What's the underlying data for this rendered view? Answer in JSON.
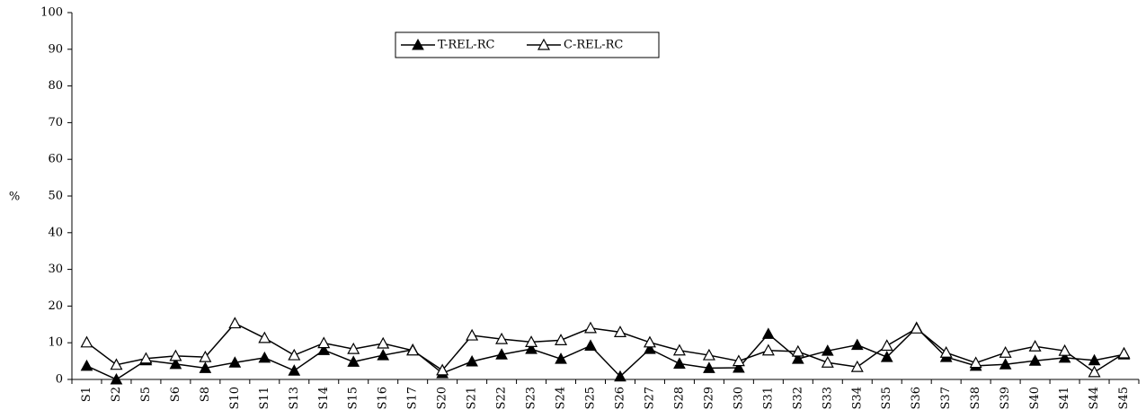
{
  "chart_data": {
    "type": "line",
    "title": "",
    "xlabel": "",
    "ylabel": "%",
    "ylim": [
      0,
      100
    ],
    "yticks": [
      0,
      10,
      20,
      30,
      40,
      50,
      60,
      70,
      80,
      90,
      100
    ],
    "grid": false,
    "legend_position": "top-center",
    "categories": [
      "S1",
      "S2",
      "S5",
      "S6",
      "S8",
      "S10",
      "S11",
      "S13",
      "S14",
      "S15",
      "S16",
      "S17",
      "S20",
      "S21",
      "S22",
      "S23",
      "S24",
      "S25",
      "S26",
      "S27",
      "S28",
      "S29",
      "S30",
      "S31",
      "S32",
      "S33",
      "S34",
      "S35",
      "S36",
      "S37",
      "S38",
      "S39",
      "S40",
      "S41",
      "S44",
      "S45"
    ],
    "series": [
      {
        "name": "T-REL-RC",
        "marker": "filled-triangle",
        "color": "#000000",
        "values": [
          3.7,
          0,
          5.2,
          4.2,
          3.1,
          4.6,
          5.9,
          2.4,
          8.0,
          4.8,
          6.6,
          8.1,
          1.7,
          4.9,
          6.8,
          8.3,
          5.6,
          9.2,
          0.8,
          8.3,
          4.3,
          3.1,
          3.2,
          12.4,
          5.6,
          7.8,
          9.4,
          6.1,
          14.1,
          6.1,
          3.7,
          4.1,
          5.1,
          5.9,
          5.2,
          6.8
        ]
      },
      {
        "name": "C-REL-RC",
        "marker": "open-triangle",
        "color": "#000000",
        "values": [
          10.1,
          4.0,
          5.7,
          6.4,
          6.1,
          15.3,
          11.3,
          6.6,
          9.9,
          8.3,
          9.8,
          7.9,
          2.5,
          12.0,
          11.0,
          10.2,
          10.7,
          14.0,
          12.9,
          10.1,
          7.9,
          6.6,
          5.0,
          7.9,
          7.6,
          4.6,
          3.4,
          9.2,
          13.9,
          7.3,
          4.5,
          7.3,
          9.0,
          7.8,
          2.0,
          7.1
        ]
      }
    ]
  }
}
